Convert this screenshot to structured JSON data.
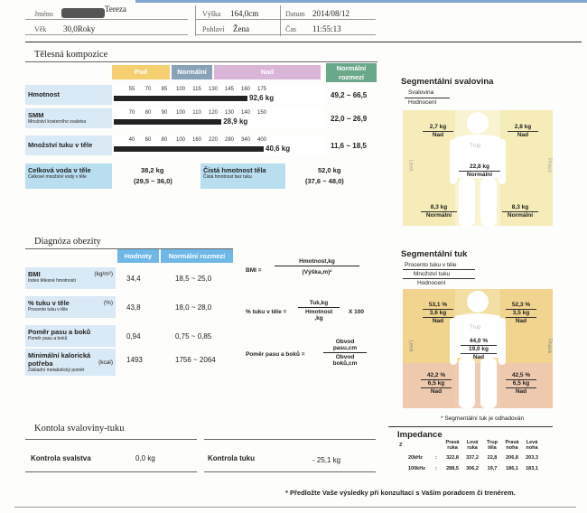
{
  "header": {
    "name_label": "Jméno",
    "name_value": "Tereza",
    "age_label": "Věk",
    "age_value": "30,0Roky",
    "height_label": "Výška",
    "height_value": "164,0cm",
    "gender_label": "Pohlaví",
    "gender_value": "Žena",
    "date_label": "Datum",
    "date_value": "2014/08/12",
    "time_label": "Čas",
    "time_value": "11:55:13"
  },
  "body_composition": {
    "title": "Tělesná kompozice",
    "col_under": "Pod",
    "col_normal": "Normální",
    "col_over": "Nad",
    "col_range": "Normální rozmezí",
    "rows": [
      {
        "label": "Hmotnost",
        "sub": "",
        "ticks": [
          "55",
          "70",
          "85",
          "100",
          "115",
          "130",
          "145",
          "160",
          "175"
        ],
        "value": "92,6 kg",
        "level": 160,
        "range": "49,2 ~ 66,5"
      },
      {
        "label": "SMM",
        "sub": "Množství kosterního svalstva",
        "ticks": [
          "70",
          "80",
          "90",
          "100",
          "110",
          "120",
          "130",
          "140",
          "150"
        ],
        "value": "28,9 kg",
        "level": 124,
        "range": "22,0 ~ 26,9"
      },
      {
        "label": "Množství tuku v těle",
        "sub": "",
        "ticks": [
          "40",
          "60",
          "80",
          "100",
          "160",
          "220",
          "280",
          "340",
          "400"
        ],
        "value": "40,6 kg",
        "level": 400,
        "range": "11,6 ~ 18,5"
      }
    ],
    "water": {
      "label": "Celková voda v těle",
      "sub": "Celkové množství vody v těle",
      "value": "38,2 kg",
      "range": "(29,5 ~ 36,0)"
    },
    "lean": {
      "label": "Čistá hmotnost těla",
      "sub": "Čistá hmotnost bez tuku",
      "value": "52,0 kg",
      "range": "(37,6 ~ 48,0)"
    }
  },
  "segmental_muscle": {
    "title": "Segmentální svalovina",
    "legend1": "Svalovina",
    "legend2": "Hodnocení",
    "left_arm": {
      "v": "2,7 kg",
      "e": "Nad"
    },
    "right_arm": {
      "v": "2,8 kg",
      "e": "Nad"
    },
    "trunk": {
      "v": "22,8 kg",
      "e": "Normální"
    },
    "left_leg": {
      "v": "8,3 kg",
      "e": "Normální"
    },
    "right_leg": {
      "v": "8,3 kg",
      "e": "Normální"
    },
    "side_left": "Levá",
    "side_right": "Pravá",
    "trunk_label": "Trup"
  },
  "obesity": {
    "title": "Diagnóza obezity",
    "col_values": "Hodnoty",
    "col_range": "Normální rozmezí",
    "rows": [
      {
        "label": "BMI",
        "unit": "(kg/m²)",
        "sub": "Index tělesné hmotnosti",
        "value": "34,4",
        "range": "18,5 ~ 25,0"
      },
      {
        "label": "% tuku v těle",
        "unit": "(%)",
        "sub": "Procento tuku v těle",
        "value": "43,8",
        "range": "18,0 ~ 28,0"
      },
      {
        "label": "Poměr pasu a boků",
        "unit": "",
        "sub": "Poměr pasu a boků",
        "value": "0,94",
        "range": "0,75 ~ 0,85"
      },
      {
        "label": "Minimální kalorická potřeba",
        "unit": "(kcal)",
        "sub": "Základní metabolický poměr",
        "value": "1493",
        "range": "1756 ~ 2064"
      }
    ],
    "formula_bmi_lhs": "BMI =",
    "formula_bmi_num": "Hmotnost,kg",
    "formula_bmi_den": "(Výška,m)²",
    "formula_fat_lhs": "% tuku v těle =",
    "formula_fat_num": "Tuk,kg",
    "formula_fat_den": "Hmotnost ,kg",
    "formula_fat_mult": "X 100",
    "formula_whr_lhs": "Poměr pasu a boků =",
    "formula_whr_num": "Obvod pasu,cm",
    "formula_whr_den": "Obvod boků,cm"
  },
  "segmental_fat": {
    "title": "Segmentální tuk",
    "legend1": "Procento tuku v těle",
    "legend2": "Množství tuku",
    "legend3": "Hodnocení",
    "left_arm": {
      "p": "53,1 %",
      "v": "3,6 kg",
      "e": "Nad"
    },
    "right_arm": {
      "p": "52,3 %",
      "v": "3,5 kg",
      "e": "Nad"
    },
    "trunk": {
      "p": "44,0 %",
      "v": "19,0 kg",
      "e": "Nad"
    },
    "left_leg": {
      "p": "42,2 %",
      "v": "6,5 kg",
      "e": "Nad"
    },
    "right_leg": {
      "p": "42,5 %",
      "v": "6,5 kg",
      "e": "Nad"
    },
    "side_left": "Levá",
    "side_right": "Pravá",
    "trunk_label": "Trup",
    "note": "* Segmentální tuk je odhadován"
  },
  "control": {
    "title": "Kontola svaloviny-tuku",
    "muscle_label": "Kontrola svalstva",
    "muscle_value": "0,0 kg",
    "fat_label": "Kontrola tuku",
    "fat_value": "- 25,1 kg"
  },
  "impedance": {
    "title": "Impedance",
    "z": "Z",
    "cols": [
      "Pravá ruka",
      "Levá ruka",
      "Trup těla",
      "Pravá noha",
      "Levá noha"
    ],
    "rows": [
      {
        "freq": "20kHz",
        "values": [
          "322,8",
          "337,2",
          "22,8",
          "206,8",
          "203,3"
        ]
      },
      {
        "freq": "100kHz",
        "values": [
          "288,5",
          "306,2",
          "19,7",
          "186,1",
          "183,1"
        ]
      }
    ]
  },
  "footer": "* Předložte Vaše výsledky při konzultaci s Vaším poradcem či trenérem.",
  "colors": {
    "under": "#f5cf6f",
    "normal": "#8aa2b8",
    "over": "#d9b6d8",
    "range": "#6aa88a",
    "label_bg": "#d9e9f5",
    "seg_yellow": "#f6ecb7",
    "seg_orange": "#f1d48e"
  }
}
